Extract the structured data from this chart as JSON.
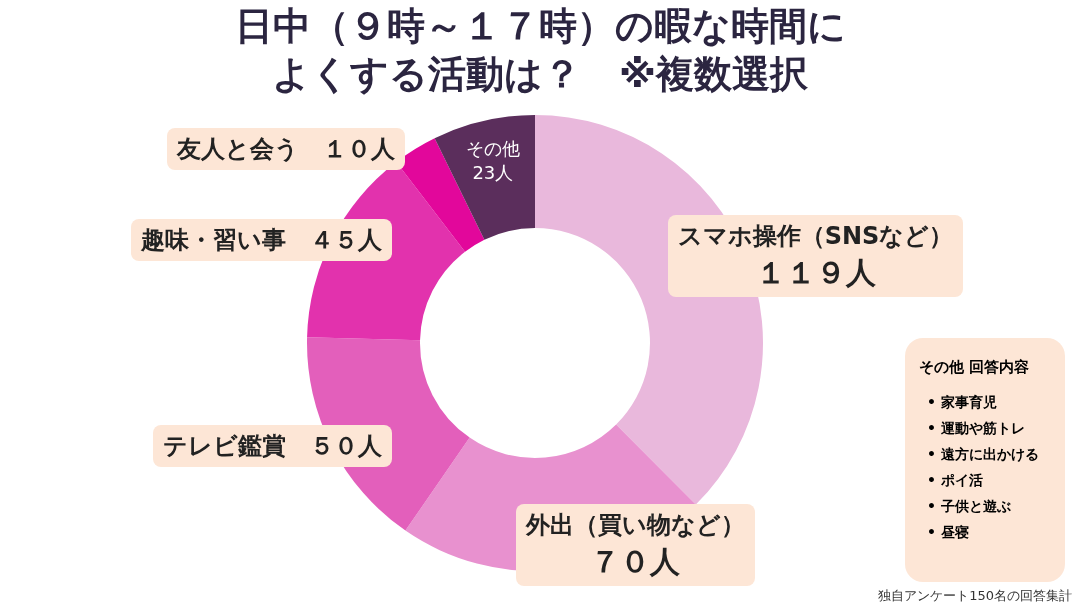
{
  "chart_data": [
    {
      "type": "donut",
      "title": "日中（９時～１７時）の暇な時間によくする活動は？　※複数選択",
      "categories": [
        "スマホ操作（SNSなど）",
        "外出（買い物など）",
        "テレビ鑑賞",
        "趣味・習い事",
        "友人と会う",
        "その他"
      ],
      "values": [
        119,
        70,
        50,
        45,
        10,
        23
      ],
      "value_labels": [
        "１１９人",
        "７０人",
        "５０人",
        "４５人",
        "１０人",
        "23人"
      ],
      "colors": [
        "#e9b8dc",
        "#e891cf",
        "#e35fbb",
        "#e232ad",
        "#e2079b",
        "#5b2e5c"
      ],
      "annotations": [
        "独自アンケート150名の回答集計"
      ]
    },
    {
      "type": "other",
      "title": "その他 回答内容",
      "annotations": [
        "• 家事育児",
        "• 運動や筋トレ",
        "• 遠方に出かける",
        "• ポイ活",
        "• 子供と遊ぶ",
        "• 昼寝"
      ]
    }
  ]
}
